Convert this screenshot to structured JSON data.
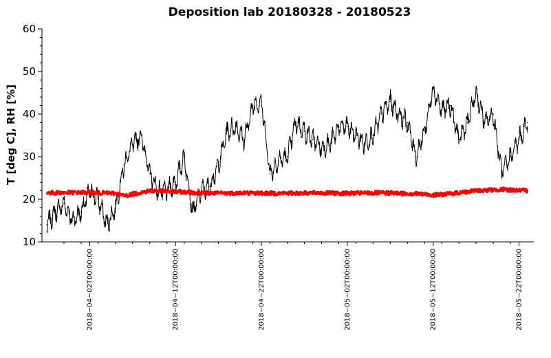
{
  "chart_data": {
    "type": "line",
    "title": "Deposition lab 20180328 - 20180523",
    "xlabel": "",
    "ylabel": "T [deg C], RH [%]",
    "xlim": [
      "2018-03-28",
      "2018-05-23"
    ],
    "ylim": [
      10,
      60
    ],
    "yticks": [
      10,
      20,
      30,
      40,
      50,
      60
    ],
    "xticks": [
      {
        "date": "2018-04-02",
        "label": "2018−04−02T00:00:00"
      },
      {
        "date": "2018-04-12",
        "label": "2018−04−12T00:00:00"
      },
      {
        "date": "2018-04-22",
        "label": "2018−04−22T00:00:00"
      },
      {
        "date": "2018-05-02",
        "label": "2018−05−02T00:00:00"
      },
      {
        "date": "2018-05-12",
        "label": "2018−05−12T00:00:00"
      },
      {
        "date": "2018-05-22",
        "label": "2018−05−22T00:00:00"
      }
    ],
    "grid": false,
    "series": [
      {
        "color": "#000000",
        "x": [
          "2018-03-28",
          "2018-03-29",
          "2018-03-30",
          "2018-03-31",
          "2018-04-01",
          "2018-04-02",
          "2018-04-03",
          "2018-04-04",
          "2018-04-05",
          "2018-04-06",
          "2018-04-07",
          "2018-04-08",
          "2018-04-09",
          "2018-04-10",
          "2018-04-11",
          "2018-04-12",
          "2018-04-13",
          "2018-04-14",
          "2018-04-15",
          "2018-04-16",
          "2018-04-17",
          "2018-04-18",
          "2018-04-19",
          "2018-04-20",
          "2018-04-21",
          "2018-04-22",
          "2018-04-23",
          "2018-04-24",
          "2018-04-25",
          "2018-04-26",
          "2018-04-27",
          "2018-04-28",
          "2018-04-29",
          "2018-04-30",
          "2018-05-01",
          "2018-05-02",
          "2018-05-03",
          "2018-05-04",
          "2018-05-05",
          "2018-05-06",
          "2018-05-07",
          "2018-05-08",
          "2018-05-09",
          "2018-05-10",
          "2018-05-11",
          "2018-05-12",
          "2018-05-13",
          "2018-05-14",
          "2018-05-15",
          "2018-05-16",
          "2018-05-17",
          "2018-05-18",
          "2018-05-19",
          "2018-05-20",
          "2018-05-21",
          "2018-05-22",
          "2018-05-23"
        ],
        "values": [
          14,
          17,
          19,
          15,
          17,
          22,
          20,
          14,
          18,
          28,
          33,
          35,
          26,
          22,
          22,
          24,
          30,
          17,
          22,
          23,
          28,
          36,
          37,
          34,
          42,
          43,
          26,
          29,
          30,
          38,
          36,
          34,
          32,
          33,
          37,
          37,
          35,
          33,
          35,
          40,
          43,
          40,
          38,
          30,
          36,
          46,
          41,
          42,
          34,
          38,
          45,
          38,
          40,
          26,
          30,
          34,
          38
        ]
      },
      {
        "color": "#ff0000",
        "x": [
          "2018-03-28",
          "2018-04-01",
          "2018-04-05",
          "2018-04-06",
          "2018-04-09",
          "2018-04-13",
          "2018-04-16",
          "2018-04-20",
          "2018-04-24",
          "2018-04-28",
          "2018-05-02",
          "2018-05-06",
          "2018-05-10",
          "2018-05-12",
          "2018-05-14",
          "2018-05-17",
          "2018-05-20",
          "2018-05-23"
        ],
        "values": [
          21.5,
          21.6,
          21.4,
          20.8,
          22.0,
          21.7,
          21.4,
          21.5,
          21.4,
          21.5,
          21.4,
          21.5,
          21.3,
          21.0,
          21.3,
          22.0,
          22.3,
          22.0
        ]
      }
    ]
  }
}
